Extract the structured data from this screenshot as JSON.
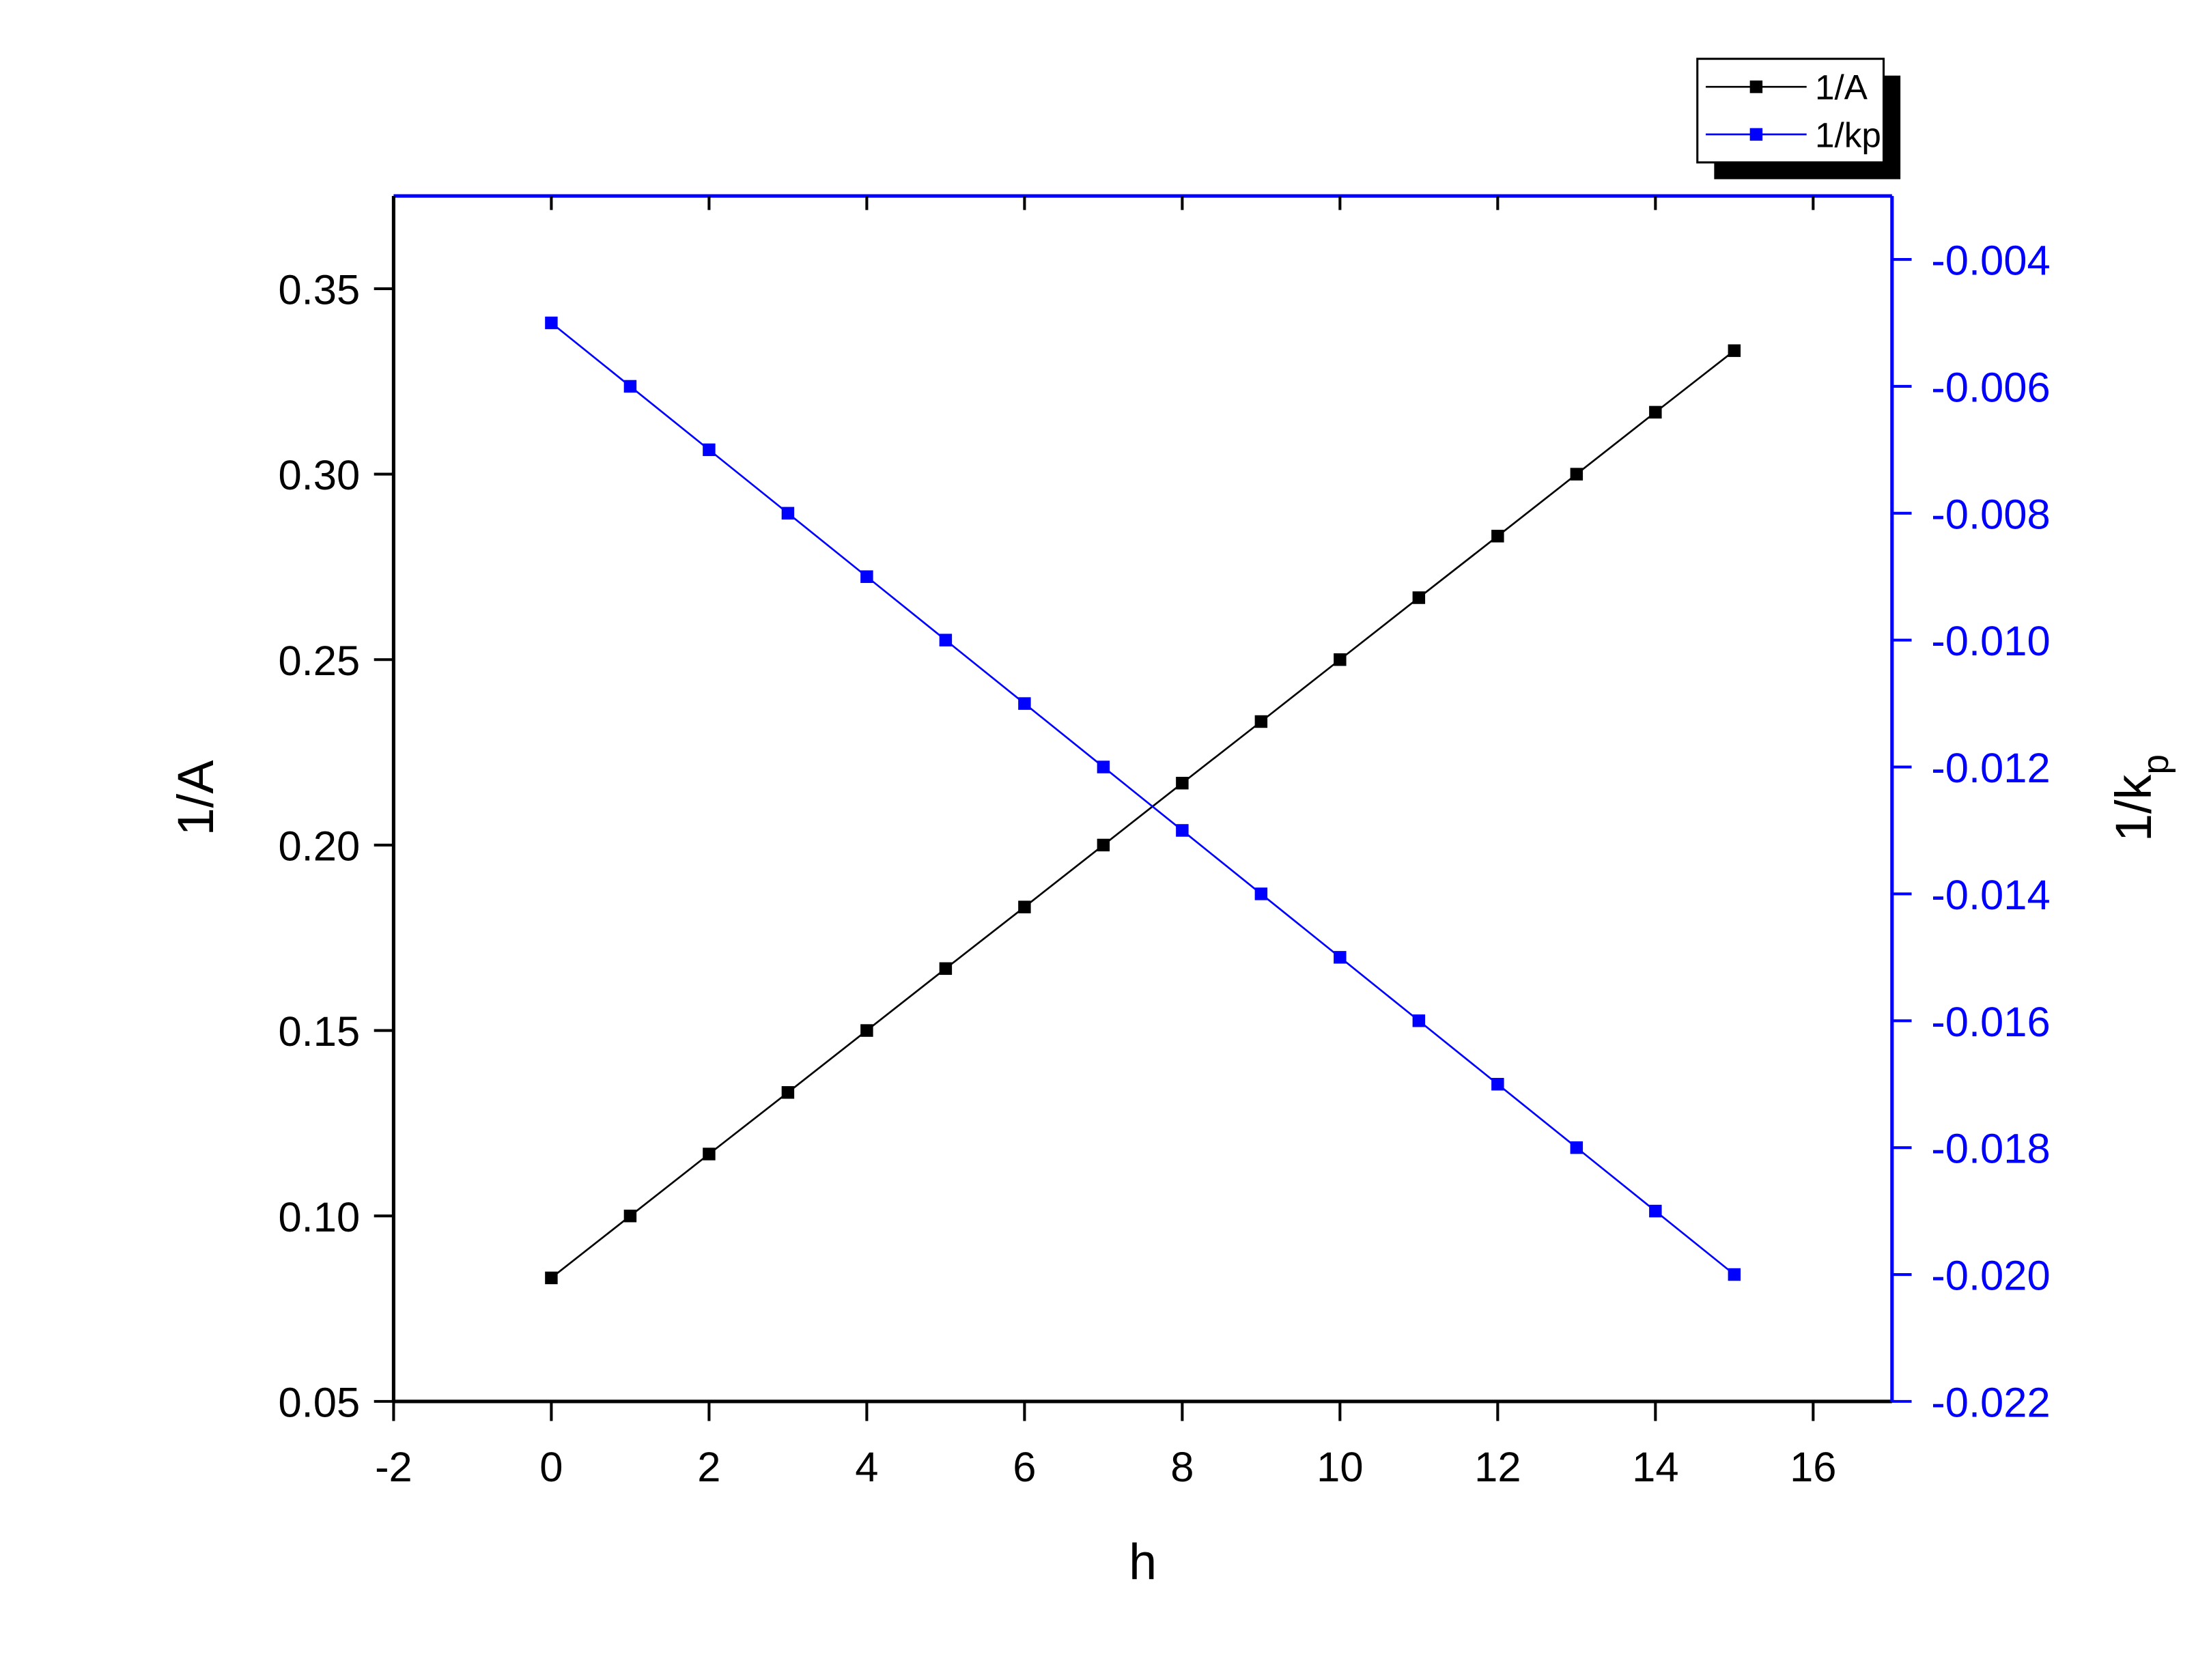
{
  "chart_data": {
    "type": "line",
    "x_label": "h",
    "y_label": "1/A",
    "y2_label_parts": [
      "1/k",
      "p"
    ],
    "x": [
      0,
      1,
      2,
      3,
      4,
      5,
      6,
      7,
      8,
      9,
      10,
      11,
      12,
      13,
      14,
      15
    ],
    "series": [
      {
        "name": "1/A",
        "color": "#000000",
        "values": [
          0.0833,
          0.1,
          0.1167,
          0.1333,
          0.15,
          0.1667,
          0.1833,
          0.2,
          0.2167,
          0.2333,
          0.25,
          0.2667,
          0.2833,
          0.3,
          0.3167,
          0.3333
        ]
      },
      {
        "name": "1/kp",
        "color": "#0000ff",
        "axis": "y2",
        "values": [
          -0.005,
          -0.006,
          -0.007,
          -0.008,
          -0.009,
          -0.01,
          -0.011,
          -0.012,
          -0.013,
          -0.014,
          -0.015,
          -0.016,
          -0.017,
          -0.018,
          -0.019,
          -0.02
        ]
      }
    ],
    "xlim": [
      -2,
      17
    ],
    "xticks": [
      -2,
      0,
      2,
      4,
      6,
      8,
      10,
      12,
      14,
      16
    ],
    "ylim": [
      0.05,
      0.375
    ],
    "yticks": [
      0.05,
      {
        "value": 0.1,
        "label": "0.10"
      },
      0.15,
      {
        "value": 0.2,
        "label": "0.20"
      },
      0.25,
      {
        "value": 0.3,
        "label": "0.30"
      },
      0.35
    ],
    "y2lim": [
      -0.022,
      -0.003
    ],
    "y2ticks": [
      -0.022,
      {
        "value": -0.02,
        "label": "-0.020"
      },
      -0.018,
      -0.016,
      -0.014,
      -0.012,
      {
        "value": -0.01,
        "label": "-0.010"
      },
      -0.008,
      -0.006,
      -0.004
    ],
    "y2_color": "#0000ff",
    "legend": "top-right"
  }
}
